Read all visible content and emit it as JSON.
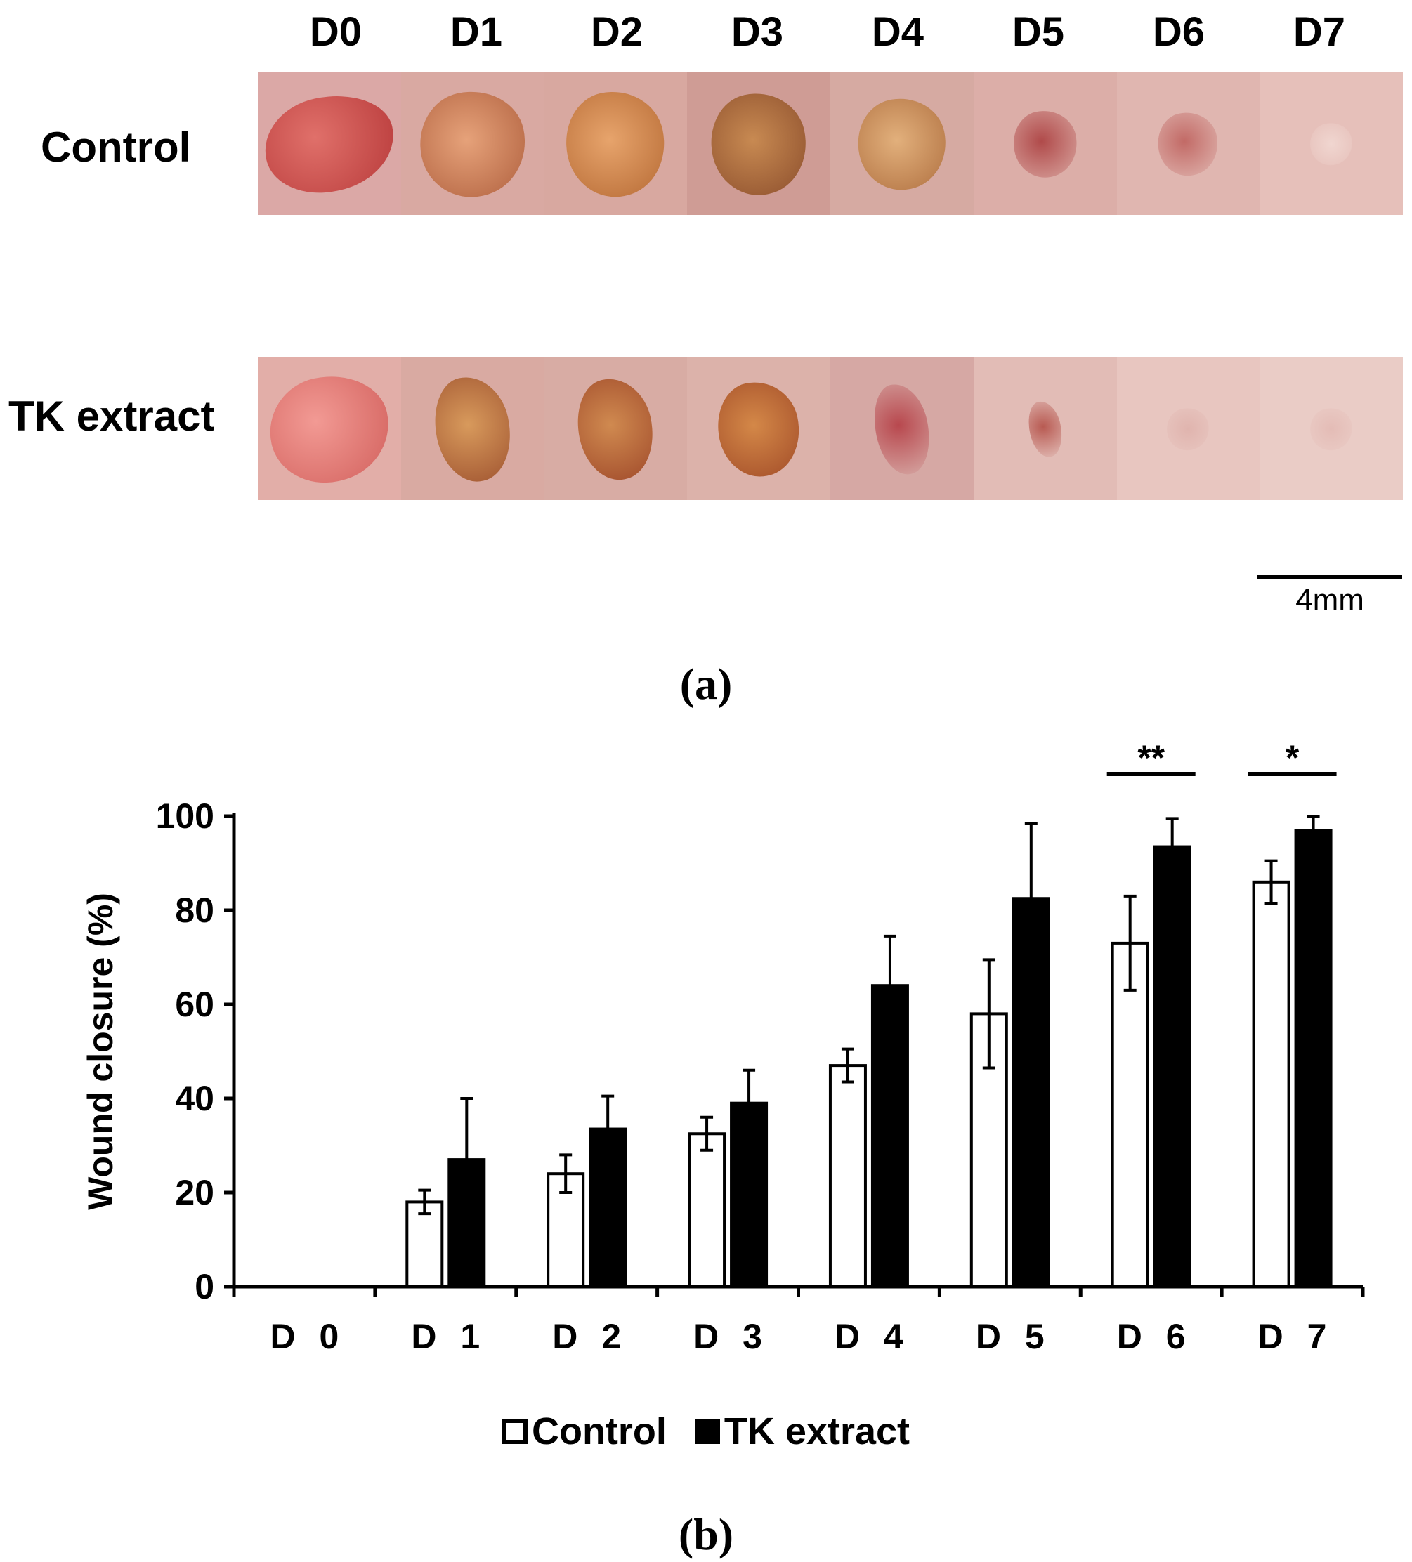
{
  "panel_a": {
    "days": [
      "D0",
      "D1",
      "D2",
      "D3",
      "D4",
      "D5",
      "D6",
      "D7"
    ],
    "rows": [
      {
        "label": "Control"
      },
      {
        "label": "TK extract"
      }
    ],
    "scale_bar": "4mm",
    "caption": "(a)"
  },
  "panel_b": {
    "caption": "(b)"
  },
  "chart_data": {
    "type": "bar",
    "title": "",
    "xlabel": "",
    "ylabel": "Wound closure (%)",
    "categories": [
      "D 0",
      "D 1",
      "D 2",
      "D 3",
      "D 4",
      "D 5",
      "D 6",
      "D 7"
    ],
    "ylim": [
      0,
      100
    ],
    "yticks": [
      0,
      20,
      40,
      60,
      80,
      100
    ],
    "series": [
      {
        "name": "Control",
        "fill": "#ffffff",
        "values": [
          0,
          18,
          24,
          32.5,
          47,
          58,
          73,
          86
        ],
        "errors": [
          0,
          2.5,
          4,
          3.5,
          3.5,
          11.5,
          10,
          4.5
        ]
      },
      {
        "name": "TK extract",
        "fill": "#000000",
        "values": [
          0,
          27,
          33.5,
          39,
          64,
          82.5,
          93.5,
          97
        ],
        "errors": [
          0,
          13,
          7,
          7,
          10.5,
          16,
          6,
          3
        ]
      }
    ],
    "significance": [
      {
        "category": "D 6",
        "label": "**"
      },
      {
        "category": "D 7",
        "label": "*"
      }
    ],
    "legend": [
      "Control",
      "TK extract"
    ],
    "legend_position": "bottom-center"
  }
}
